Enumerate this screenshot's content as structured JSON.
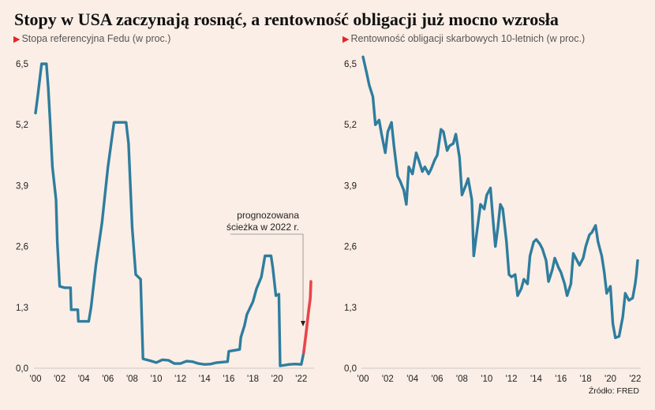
{
  "title": "Stopy w USA zaczynają rosnąć, a rentowność obligacji już mocno wzrosła",
  "source": "Źródło: FRED",
  "colors": {
    "line": "#2e7d9e",
    "forecast": "#e8454a",
    "marker": "#e3242b"
  },
  "chart_data": [
    {
      "type": "line",
      "subtitle": "Stopa referencyjna Fedu (w proc.)",
      "y_ticks": [
        "6,5",
        "5,2",
        "3,9",
        "2,6",
        "1,3",
        "0,0"
      ],
      "ylim": [
        0,
        6.5
      ],
      "x_ticks": [
        "'00",
        "'02",
        "'04",
        "'06",
        "'08",
        "'10",
        "'12",
        "'14",
        "'16",
        "'18",
        "'20",
        "'22"
      ],
      "xlim": [
        2000,
        2022.8
      ],
      "annotation": "prognozowana ścieżka w 2022 r.",
      "series": [
        {
          "values": [
            [
              2000.0,
              5.45
            ],
            [
              2000.2,
              5.85
            ],
            [
              2000.5,
              6.5
            ],
            [
              2000.9,
              6.5
            ],
            [
              2001.05,
              6.0
            ],
            [
              2001.2,
              5.3
            ],
            [
              2001.4,
              4.3
            ],
            [
              2001.7,
              3.6
            ],
            [
              2001.8,
              2.7
            ],
            [
              2002.0,
              1.75
            ],
            [
              2002.4,
              1.72
            ],
            [
              2002.9,
              1.72
            ],
            [
              2002.95,
              1.25
            ],
            [
              2003.5,
              1.25
            ],
            [
              2003.55,
              1.0
            ],
            [
              2004.4,
              1.0
            ],
            [
              2004.6,
              1.3
            ],
            [
              2005.0,
              2.2
            ],
            [
              2005.5,
              3.1
            ],
            [
              2006.0,
              4.3
            ],
            [
              2006.5,
              5.25
            ],
            [
              2007.5,
              5.25
            ],
            [
              2007.7,
              4.8
            ],
            [
              2008.0,
              3.0
            ],
            [
              2008.3,
              2.0
            ],
            [
              2008.7,
              1.9
            ],
            [
              2008.9,
              0.2
            ],
            [
              2009.5,
              0.16
            ],
            [
              2010.0,
              0.12
            ],
            [
              2010.5,
              0.18
            ],
            [
              2011.0,
              0.17
            ],
            [
              2011.5,
              0.1
            ],
            [
              2012.0,
              0.1
            ],
            [
              2012.5,
              0.15
            ],
            [
              2013.0,
              0.14
            ],
            [
              2013.5,
              0.1
            ],
            [
              2014.0,
              0.08
            ],
            [
              2014.5,
              0.09
            ],
            [
              2015.0,
              0.12
            ],
            [
              2015.9,
              0.14
            ],
            [
              2016.0,
              0.36
            ],
            [
              2016.9,
              0.4
            ],
            [
              2017.0,
              0.66
            ],
            [
              2017.3,
              0.91
            ],
            [
              2017.5,
              1.15
            ],
            [
              2018.0,
              1.42
            ],
            [
              2018.3,
              1.7
            ],
            [
              2018.7,
              1.95
            ],
            [
              2019.0,
              2.4
            ],
            [
              2019.5,
              2.4
            ],
            [
              2019.65,
              2.13
            ],
            [
              2019.9,
              1.55
            ],
            [
              2020.15,
              1.58
            ],
            [
              2020.25,
              0.05
            ],
            [
              2021.0,
              0.08
            ],
            [
              2021.5,
              0.09
            ],
            [
              2022.0,
              0.08
            ],
            [
              2022.2,
              0.33
            ]
          ]
        },
        {
          "name": "prognoza",
          "values": [
            [
              2022.2,
              0.33
            ],
            [
              2022.45,
              0.85
            ],
            [
              2022.6,
              1.2
            ],
            [
              2022.75,
              1.5
            ],
            [
              2022.8,
              1.85
            ]
          ]
        }
      ]
    },
    {
      "type": "line",
      "subtitle": "Rentowność obligacji skarbowych 10-letnich (w proc.)",
      "y_ticks": [
        "6,5",
        "5,2",
        "3,9",
        "2,6",
        "1,3",
        "0,0"
      ],
      "ylim": [
        0,
        6.5
      ],
      "x_ticks": [
        "'00",
        "'02",
        "'04",
        "'06",
        "'08",
        "'10",
        "'12",
        "'14",
        "'16",
        "'18",
        "'20",
        "'22"
      ],
      "xlim": [
        2000,
        2022.2
      ],
      "series": [
        {
          "values": [
            [
              2000.0,
              6.65
            ],
            [
              2000.3,
              6.3
            ],
            [
              2000.5,
              6.05
            ],
            [
              2000.8,
              5.8
            ],
            [
              2001.0,
              5.2
            ],
            [
              2001.3,
              5.3
            ],
            [
              2001.5,
              5.0
            ],
            [
              2001.8,
              4.6
            ],
            [
              2002.0,
              5.05
            ],
            [
              2002.3,
              5.25
            ],
            [
              2002.5,
              4.75
            ],
            [
              2002.8,
              4.1
            ],
            [
              2003.0,
              4.0
            ],
            [
              2003.3,
              3.8
            ],
            [
              2003.5,
              3.5
            ],
            [
              2003.7,
              4.3
            ],
            [
              2004.0,
              4.15
            ],
            [
              2004.3,
              4.6
            ],
            [
              2004.5,
              4.45
            ],
            [
              2004.8,
              4.2
            ],
            [
              2005.0,
              4.3
            ],
            [
              2005.3,
              4.15
            ],
            [
              2005.5,
              4.25
            ],
            [
              2005.8,
              4.45
            ],
            [
              2006.0,
              4.55
            ],
            [
              2006.3,
              5.1
            ],
            [
              2006.5,
              5.05
            ],
            [
              2006.8,
              4.65
            ],
            [
              2007.0,
              4.75
            ],
            [
              2007.3,
              4.8
            ],
            [
              2007.5,
              5.0
            ],
            [
              2007.8,
              4.5
            ],
            [
              2008.0,
              3.7
            ],
            [
              2008.3,
              3.9
            ],
            [
              2008.5,
              4.05
            ],
            [
              2008.8,
              3.6
            ],
            [
              2008.95,
              2.4
            ],
            [
              2009.2,
              2.9
            ],
            [
              2009.5,
              3.5
            ],
            [
              2009.8,
              3.4
            ],
            [
              2010.0,
              3.7
            ],
            [
              2010.3,
              3.85
            ],
            [
              2010.5,
              3.2
            ],
            [
              2010.7,
              2.6
            ],
            [
              2010.9,
              3.0
            ],
            [
              2011.1,
              3.5
            ],
            [
              2011.3,
              3.4
            ],
            [
              2011.6,
              2.7
            ],
            [
              2011.8,
              2.0
            ],
            [
              2012.0,
              1.95
            ],
            [
              2012.3,
              2.0
            ],
            [
              2012.5,
              1.55
            ],
            [
              2012.8,
              1.7
            ],
            [
              2013.0,
              1.9
            ],
            [
              2013.3,
              1.8
            ],
            [
              2013.5,
              2.4
            ],
            [
              2013.8,
              2.7
            ],
            [
              2014.0,
              2.75
            ],
            [
              2014.3,
              2.65
            ],
            [
              2014.5,
              2.55
            ],
            [
              2014.8,
              2.3
            ],
            [
              2015.0,
              1.85
            ],
            [
              2015.3,
              2.1
            ],
            [
              2015.5,
              2.35
            ],
            [
              2015.8,
              2.15
            ],
            [
              2016.0,
              2.05
            ],
            [
              2016.3,
              1.8
            ],
            [
              2016.5,
              1.55
            ],
            [
              2016.8,
              1.8
            ],
            [
              2017.0,
              2.45
            ],
            [
              2017.3,
              2.3
            ],
            [
              2017.5,
              2.2
            ],
            [
              2017.8,
              2.35
            ],
            [
              2018.0,
              2.6
            ],
            [
              2018.3,
              2.85
            ],
            [
              2018.5,
              2.9
            ],
            [
              2018.8,
              3.05
            ],
            [
              2019.0,
              2.7
            ],
            [
              2019.3,
              2.4
            ],
            [
              2019.5,
              2.05
            ],
            [
              2019.7,
              1.6
            ],
            [
              2020.0,
              1.75
            ],
            [
              2020.2,
              0.95
            ],
            [
              2020.4,
              0.65
            ],
            [
              2020.7,
              0.68
            ],
            [
              2021.0,
              1.1
            ],
            [
              2021.2,
              1.6
            ],
            [
              2021.5,
              1.45
            ],
            [
              2021.8,
              1.5
            ],
            [
              2022.0,
              1.8
            ],
            [
              2022.1,
              2.0
            ],
            [
              2022.2,
              2.3
            ]
          ]
        }
      ]
    }
  ]
}
